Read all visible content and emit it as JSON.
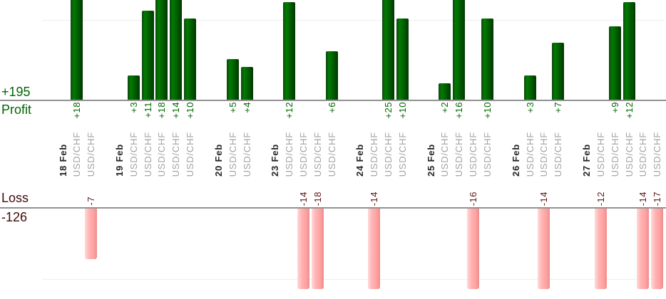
{
  "chart_data": {
    "type": "bar",
    "description": "Daily trade profit/loss chart, one bar per trade, grouped by date",
    "axes": {
      "profit_total": "+195",
      "profit_label": "Profit",
      "loss_label": "Loss",
      "loss_total": "-126",
      "profit_gridline_value": 10,
      "loss_gridline_value": -10,
      "grid": "faint horizontal gridlines at +10 and -10"
    },
    "colors": {
      "profit_bar": "#006600",
      "loss_bar": "#ffb3b3",
      "profit_text": "#006600",
      "loss_total_text": "#400a0a",
      "loss_value_text": "#5c1717",
      "date_text": "#262626",
      "symbol_text": "#a3a3a3",
      "axis_line": "#919191"
    },
    "groups": [
      {
        "date": "18 Feb",
        "trades": [
          {
            "symbol": "USD/CHF",
            "value": 18,
            "label": "+18"
          },
          {
            "symbol": "USD/CHF",
            "value": -7,
            "label": "-7"
          }
        ]
      },
      {
        "date": "19 Feb",
        "trades": [
          {
            "symbol": "USD/CHF",
            "value": 3,
            "label": "+3"
          },
          {
            "symbol": "USD/CHF",
            "value": 11,
            "label": "+11"
          },
          {
            "symbol": "USD/CHF",
            "value": 18,
            "label": "+18"
          },
          {
            "symbol": "USD/CHF",
            "value": 14,
            "label": "+14"
          },
          {
            "symbol": "USD/CHF",
            "value": 10,
            "label": "+10"
          }
        ]
      },
      {
        "date": "20 Feb",
        "trades": [
          {
            "symbol": "USD/CHF",
            "value": 5,
            "label": "+5"
          },
          {
            "symbol": "USD/CHF",
            "value": 4,
            "label": "+4"
          }
        ]
      },
      {
        "date": "23 Feb",
        "trades": [
          {
            "symbol": "USD/CHF",
            "value": 12,
            "label": "+12"
          },
          {
            "symbol": "USD/CHF",
            "value": -14,
            "label": "-14"
          },
          {
            "symbol": "USD/CHF",
            "value": -18,
            "label": "-18"
          },
          {
            "symbol": "USD/CHF",
            "value": 6,
            "label": "+6"
          }
        ]
      },
      {
        "date": "24 Feb",
        "trades": [
          {
            "symbol": "USD/CHF",
            "value": -14,
            "label": "-14"
          },
          {
            "symbol": "USD/CHF",
            "value": 25,
            "label": "+25"
          },
          {
            "symbol": "USD/CHF",
            "value": 10,
            "label": "+10"
          }
        ]
      },
      {
        "date": "25 Feb",
        "trades": [
          {
            "symbol": "USD/CHF",
            "value": 2,
            "label": "+2"
          },
          {
            "symbol": "USD/CHF",
            "value": 16,
            "label": "+16"
          },
          {
            "symbol": "USD/CHF",
            "value": -16,
            "label": "-16"
          },
          {
            "symbol": "USD/CHF",
            "value": 10,
            "label": "+10"
          }
        ]
      },
      {
        "date": "26 Feb",
        "trades": [
          {
            "symbol": "USD/CHF",
            "value": 3,
            "label": "+3"
          },
          {
            "symbol": "USD/CHF",
            "value": -14,
            "label": "-14"
          },
          {
            "symbol": "USD/CHF",
            "value": 7,
            "label": "+7"
          }
        ]
      },
      {
        "date": "27 Feb",
        "trades": [
          {
            "symbol": "USD/CHF",
            "value": -12,
            "label": "-12"
          },
          {
            "symbol": "USD/CHF",
            "value": 9,
            "label": "+9"
          },
          {
            "symbol": "USD/CHF",
            "value": 12,
            "label": "+12"
          },
          {
            "symbol": "USD/CHF",
            "value": -14,
            "label": "-14"
          },
          {
            "symbol": "USD/CHF",
            "value": -17,
            "label": "-17"
          }
        ]
      }
    ],
    "layout_hints": {
      "legend": "none",
      "profit_bars_clipped_at_top_above": 12,
      "loss_bars_clipped_at_bottom_below": -11,
      "bar_label_rotation_deg": -90
    }
  }
}
